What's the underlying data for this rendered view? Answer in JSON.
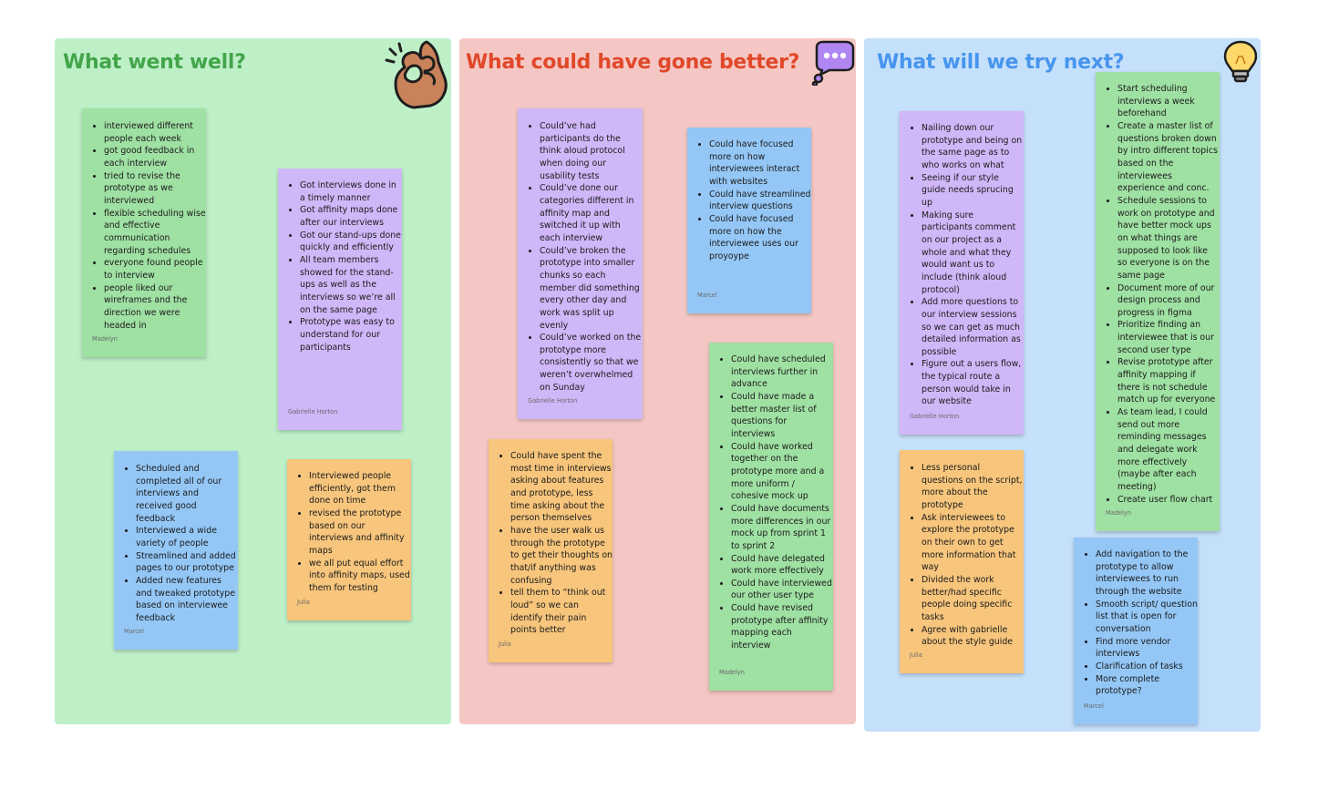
{
  "board": {
    "columns": [
      {
        "title": "What went well?",
        "title_color": "#43a54a",
        "bg": "#bef0c8",
        "icon": "ok-hand-icon",
        "notes": [
          {
            "color": "#9fe0a3",
            "items": [
              "interviewed different people each week",
              "got good feedback in each interview",
              "tried to revise the prototype as we interviewed",
              "flexible scheduling wise and effective communication regarding schedules",
              "everyone found people to interview",
              "people liked our wireframes and the direction we were headed in"
            ],
            "author": "Madelyn"
          },
          {
            "color": "#d0b7f8",
            "items": [
              "Got interviews done in a timely manner",
              "Got affinity maps done after our interviews",
              "Got our stand-ups done quickly and efficiently",
              "All team members showed for the stand-ups as well as the interviews so we’re all on the same page",
              "Prototype was easy to understand for our participants"
            ],
            "author": "Gabrielle Horton"
          },
          {
            "color": "#94c7f6",
            "items": [
              "Scheduled and completed all of our interviews and received good feedback",
              "Interviewed a wide variety of people",
              "Streamlined and added pages to our prototype",
              "Added new features and tweaked prototype based on interviewee feedback"
            ],
            "author": "Marcel"
          },
          {
            "color": "#f7c57c",
            "items": [
              "Interviewed people efficiently, got them done on time",
              "revised the prototype based on our interviews and affinity maps",
              "we all put equal effort into affinity maps, used them for testing"
            ],
            "author": "Julia"
          }
        ]
      },
      {
        "title": "What could have gone better?",
        "title_color": "#e0482a",
        "bg": "#f5c7c4",
        "icon": "thought-bubble-icon",
        "notes": [
          {
            "color": "#d0b7f8",
            "items": [
              "Could’ve had participants do the think aloud protocol when doing our usability tests",
              "Could’ve done our categories different in affinity map and switched it up with each interview",
              "Could’ve broken the prototype into smaller chunks so each member did something every other day and work was split up evenly",
              "Could’ve worked on the prototype more consistently so that we weren’t overwhelmed on Sunday"
            ],
            "author": "Gabrielle Horton"
          },
          {
            "color": "#94c7f6",
            "items": [
              "Could have focused more on how interviewees interact with websites",
              "Could have streamlined interview questions",
              "Could have focused more on how the interviewee uses our proyoype"
            ],
            "author": "Marcel"
          },
          {
            "color": "#f7c57c",
            "items": [
              "Could have spent the most time in interviews asking about features and prototype, less time asking about the person themselves",
              "have the user walk us through the prototype to get their thoughts on that/if anything was confusing",
              "tell them to “think out loud” so we can identify their pain points better"
            ],
            "author": "Julia"
          },
          {
            "color": "#9fe0a3",
            "items": [
              "Could have scheduled interviews further in advance",
              "Could have made a better master list of questions for interviews",
              "Could have worked together on the prototype more and a more uniform / cohesive mock up",
              "Could have documents more differences in our mock up from sprint 1 to sprint 2",
              "Could have delegated work more effectively",
              "Could have interviewed our other user type",
              "Could have revised prototype after affinity mapping each interview"
            ],
            "author": "Madelyn"
          }
        ]
      },
      {
        "title": "What will we try next?",
        "title_color": "#4795ee",
        "bg": "#c5e0fa",
        "icon": "light-bulb-icon",
        "notes": [
          {
            "color": "#d0b7f8",
            "items": [
              "Nailing down our prototype and being on the same page as to who works on what",
              "Seeing if our style guide needs sprucing up",
              "Making sure participants comment on our project as a whole and what they would want us to include (think aloud protocol)",
              "Add more questions to our interview sessions so we can get as much detailed information as possible",
              "Figure out a users flow, the typical route a person would take in our website"
            ],
            "author": "Gabrielle Horton"
          },
          {
            "color": "#9fe0a3",
            "items": [
              "Start scheduling interviews a week beforehand",
              "Create a master list of questions broken down by intro different topics based on the interviewees experience and conc.",
              "Schedule sessions to work on prototype and have better mock ups on what things are supposed to look like so everyone is on the same page",
              "Document more of our design process and progress in figma",
              "Prioritize finding an interviewee that is our second user type",
              "Revise prototype after affinity mapping if there is not schedule match up for everyone",
              "As team lead, I could send out more reminding messages and delegate work more effectively (maybe after each meeting)",
              "Create user flow chart"
            ],
            "author": "Madelyn"
          },
          {
            "color": "#f7c57c",
            "items": [
              "Less personal questions on the script, more about the prototype",
              "Ask interviewees to explore the prototype on their own to get more information that way",
              "Divided the work better/had specific people doing specific tasks",
              "Agree with gabrielle about the style guide"
            ],
            "author": "Julia"
          },
          {
            "color": "#94c7f6",
            "items": [
              "Add navigation to the prototype to allow interviewees to run through the website",
              "Smooth script/ question list that is open for conversation",
              "Find more vendor interviews",
              "Clarification of tasks",
              "More complete prototype?"
            ],
            "author": "Marcel"
          }
        ]
      }
    ]
  }
}
